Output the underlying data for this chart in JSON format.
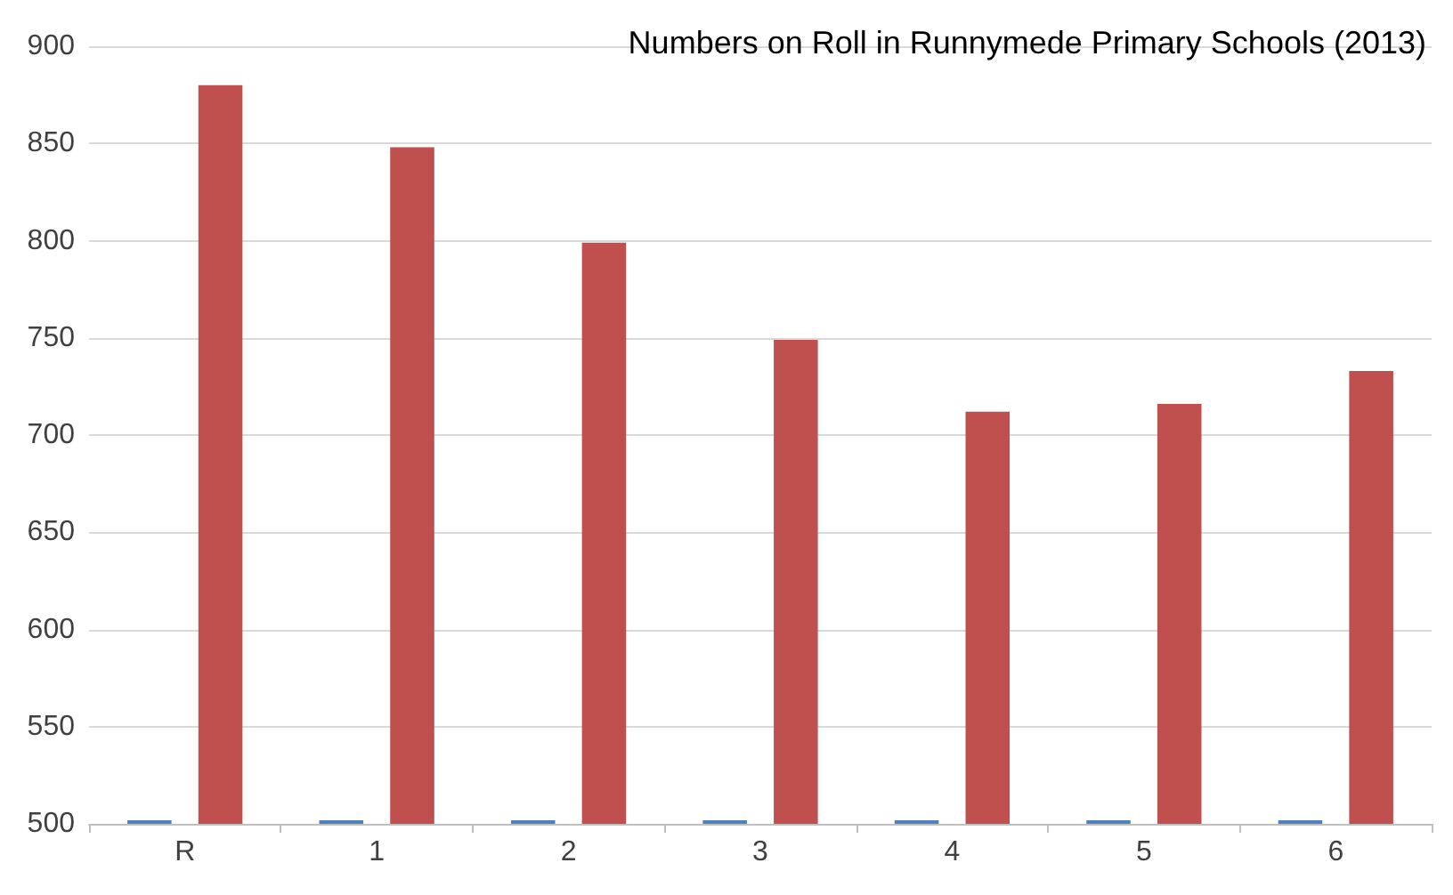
{
  "chart_data": {
    "type": "bar",
    "title": "Numbers on Roll in Runnymede Primary Schools (2013)",
    "categories": [
      "R",
      "1",
      "2",
      "3",
      "4",
      "5",
      "6"
    ],
    "series": [
      {
        "color": "#4f81bd",
        "values": [
          500,
          500,
          500,
          500,
          500,
          500,
          500
        ]
      },
      {
        "color": "#c0504d",
        "values": [
          880,
          848,
          799,
          749,
          712,
          716,
          733
        ]
      }
    ],
    "ylim": [
      500,
      900
    ],
    "yticks": [
      500,
      550,
      600,
      650,
      700,
      750,
      800,
      850,
      900
    ],
    "grid": "y"
  }
}
